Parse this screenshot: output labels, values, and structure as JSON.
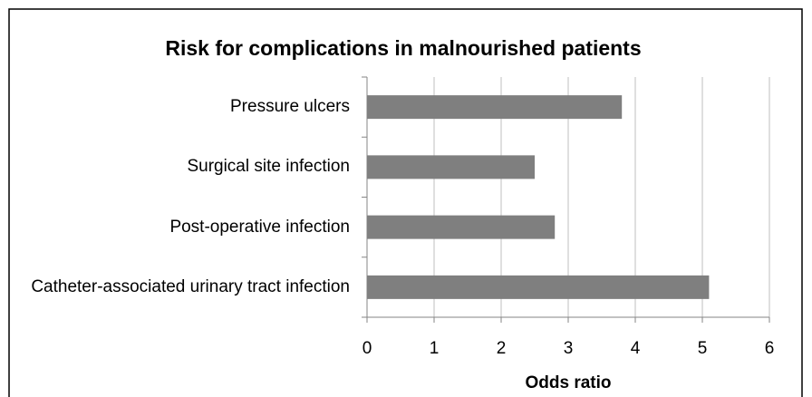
{
  "chart_data": {
    "type": "bar",
    "orientation": "horizontal",
    "title": "Risk for complications in malnourished patients",
    "x_label": "Odds ratio",
    "categories": [
      "Pressure ulcers",
      "Surgical site infection",
      "Post-operative infection",
      "Catheter-associated urinary tract infection"
    ],
    "values": [
      3.8,
      2.5,
      2.8,
      5.1
    ],
    "color": "#7f7f7f",
    "xlim": [
      0,
      6
    ],
    "xticks": [
      0,
      1,
      2,
      3,
      4,
      5,
      6
    ],
    "grid": true
  }
}
